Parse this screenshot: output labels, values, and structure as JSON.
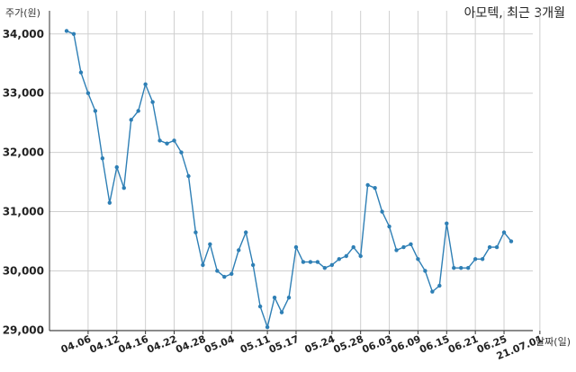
{
  "chart_data": {
    "type": "line",
    "title": "아모텍, 최근 3개월",
    "ylabel": "주가(원)",
    "xlabel": "날짜(일)",
    "color": "#2e7fb5",
    "ylim": [
      29000,
      34000
    ],
    "yticks": [
      29000,
      30000,
      31000,
      32000,
      33000,
      34000
    ],
    "ytick_labels": [
      "29,000",
      "30,000",
      "31,000",
      "32,000",
      "33,000",
      "34,000"
    ],
    "grid": true,
    "xtick_labels": [
      "04.06",
      "04.12",
      "04.16",
      "04.22",
      "04.28",
      "05.04",
      "05.11",
      "05.17",
      "05.24",
      "05.28",
      "06.03",
      "06.09",
      "06.15",
      "06.21",
      "06.25",
      "21.07.01"
    ],
    "xtick_index": [
      3,
      7,
      11,
      15,
      19,
      23,
      28,
      32,
      37,
      41,
      45,
      49,
      53,
      57,
      61,
      66
    ],
    "values": [
      34050,
      34000,
      33350,
      33000,
      32700,
      31900,
      31150,
      31750,
      31400,
      32550,
      32700,
      33150,
      32850,
      32200,
      32150,
      32200,
      32000,
      31600,
      30650,
      30100,
      30450,
      30000,
      29900,
      29950,
      30350,
      30650,
      30100,
      29400,
      29050,
      29550,
      29300,
      29550,
      30400,
      30150,
      30150,
      30150,
      30050,
      30100,
      30200,
      30250,
      30400,
      30250,
      31450,
      31400,
      31000,
      30750,
      30350,
      30400,
      30450,
      30200,
      30000,
      29650,
      29750,
      30800,
      30050,
      30050,
      30050,
      30200,
      30200,
      30400,
      30400,
      30650,
      30500
    ]
  }
}
